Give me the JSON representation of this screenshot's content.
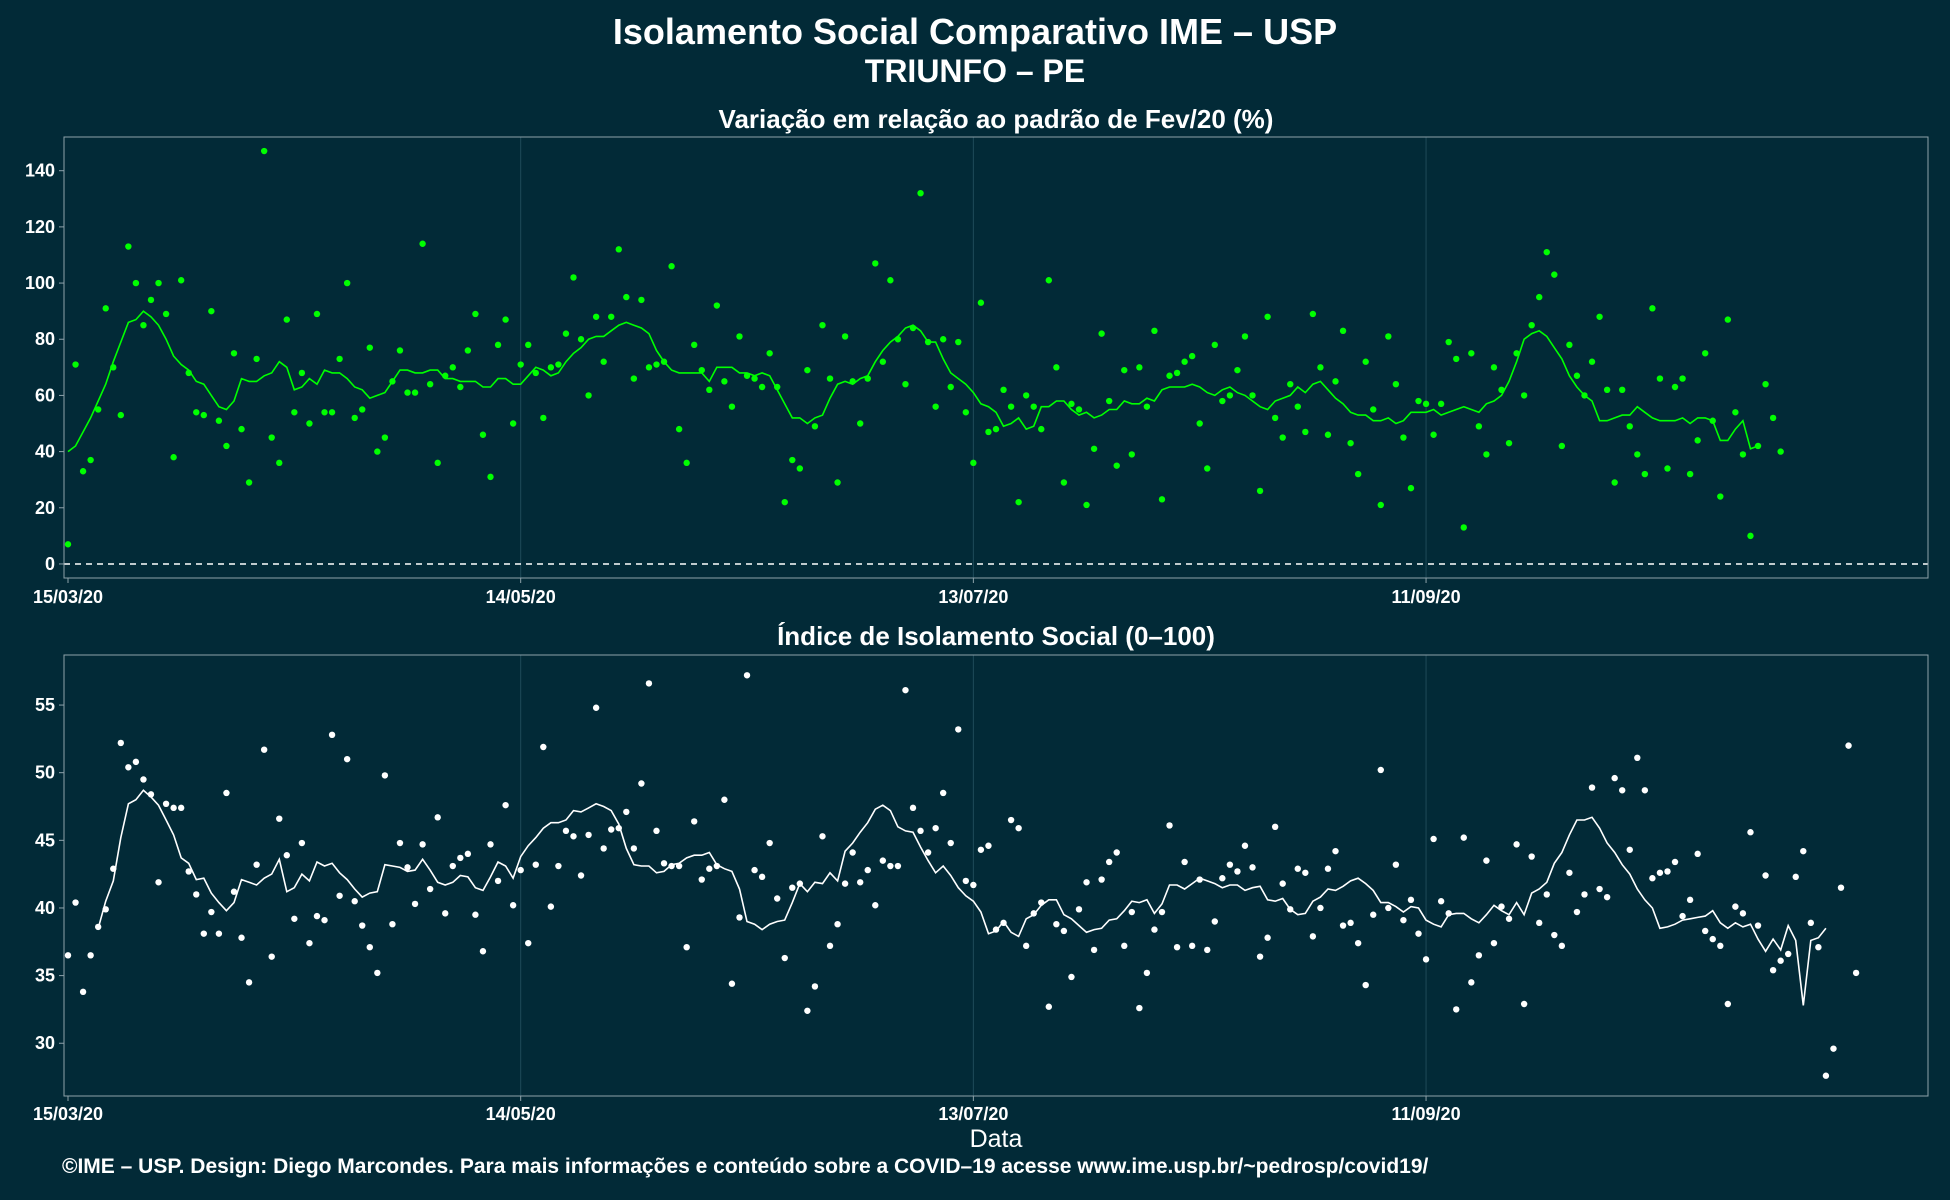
{
  "header": {
    "title": "Isolamento Social Comparativo IME – USP",
    "subtitle": "TRIUNFO – PE"
  },
  "footer": "©IME – USP. Design: Diego Marcondes. Para mais informações e conteúdo sobre a COVID–19 acesse www.ime.usp.br/~pedrosp/covid19/",
  "colors": {
    "background": "#022a37",
    "panel_border": "#8ea2aa",
    "grid": "#1f4a58",
    "green": "#00ff00",
    "white": "#ffffff"
  },
  "chart_data": [
    {
      "type": "scatter",
      "title": "Variação em relação ao padrão de Fev/20 (%)",
      "xlabel": "",
      "ylabel": "",
      "x_ticks": [
        "15/03/20",
        "14/05/20",
        "13/07/20",
        "11/09/20"
      ],
      "y_ticks": [
        0,
        20,
        40,
        60,
        80,
        100,
        120,
        140
      ],
      "ylim": [
        -5,
        152
      ],
      "x_range": [
        "15/03/20",
        "16/11/20"
      ],
      "reference_line": 0,
      "grid": true,
      "series": [
        {
          "kind": "points",
          "color": "#00ff00",
          "values": [
            7,
            71,
            33,
            37,
            55,
            91,
            70,
            53,
            113,
            100,
            85,
            94,
            100,
            89,
            38,
            101,
            68,
            54,
            53,
            90,
            51,
            42,
            75,
            48,
            29,
            73,
            147,
            45,
            36,
            87,
            54,
            68,
            50,
            89,
            54,
            54,
            73,
            100,
            52,
            55,
            77,
            40,
            45,
            65,
            76,
            61,
            61,
            114,
            64,
            36,
            67,
            70,
            63,
            76,
            89,
            46,
            31,
            78,
            87,
            50,
            71,
            78,
            68,
            52,
            70,
            71,
            82,
            102,
            80,
            60,
            88,
            72,
            88,
            112,
            95,
            66,
            94,
            70,
            71,
            72,
            106,
            48,
            36,
            78,
            69,
            62,
            92,
            65,
            56,
            81,
            67,
            66,
            63,
            75,
            63,
            22,
            37,
            34,
            69,
            49,
            85,
            66,
            29,
            81,
            65,
            50,
            66,
            107,
            72,
            101,
            80,
            64,
            84,
            132,
            79,
            56,
            80,
            63,
            79,
            54,
            36,
            93,
            47,
            48,
            62,
            56,
            22,
            60,
            56,
            48,
            101,
            70,
            29,
            57,
            55,
            21,
            41,
            82,
            58,
            35,
            69,
            39,
            70,
            56,
            83,
            23,
            67,
            68,
            72,
            74,
            50,
            34,
            78,
            58,
            60,
            69,
            81,
            60,
            26,
            88,
            52,
            45,
            64,
            56,
            47,
            89,
            70,
            46,
            65,
            83,
            43,
            32,
            72,
            55,
            21,
            81,
            64,
            45,
            27,
            58,
            57,
            46,
            57,
            79,
            73,
            13,
            75,
            49,
            39,
            70,
            62,
            43,
            75,
            60,
            85,
            95,
            111,
            103,
            42,
            78,
            67,
            60,
            72,
            88,
            62,
            29,
            62,
            49,
            39,
            32,
            91,
            66,
            34,
            63,
            66,
            32,
            44,
            75,
            51,
            24,
            87,
            54,
            39,
            10,
            42,
            64,
            52,
            40
          ]
        },
        {
          "kind": "line",
          "color": "#00ff00",
          "name": "",
          "values": [
            40,
            42,
            47,
            52,
            58,
            64,
            72,
            79,
            86,
            87,
            90,
            88,
            85,
            80,
            74,
            71,
            69,
            65,
            64,
            60,
            56,
            55,
            58,
            66,
            65,
            65,
            67,
            68,
            72,
            70,
            62,
            63,
            66,
            64,
            69,
            68,
            68,
            66,
            63,
            62,
            59,
            60,
            61,
            65,
            69,
            69,
            68,
            68,
            69,
            69,
            66,
            66,
            65,
            65,
            65,
            63,
            63,
            66,
            66,
            64,
            64,
            67,
            70,
            69,
            67,
            68,
            72,
            75,
            77,
            80,
            81,
            81,
            83,
            85,
            86,
            85,
            84,
            82,
            76,
            72,
            69,
            68,
            68,
            68,
            68,
            65,
            70,
            70,
            70,
            68,
            68,
            67,
            68,
            67,
            62,
            57,
            52,
            52,
            50,
            52,
            53,
            59,
            64,
            65,
            64,
            66,
            67,
            72,
            76,
            79,
            81,
            84,
            85,
            83,
            79,
            79,
            73,
            68,
            66,
            64,
            61,
            57,
            56,
            54,
            49,
            50,
            52,
            48,
            49,
            56,
            56,
            58,
            58,
            55,
            53,
            54,
            52,
            53,
            55,
            55,
            58,
            57,
            57,
            59,
            58,
            62,
            63,
            63,
            63,
            64,
            63,
            61,
            60,
            62,
            63,
            61,
            60,
            58,
            56,
            55,
            58,
            59,
            60,
            63,
            61,
            64,
            65,
            62,
            59,
            57,
            54,
            53,
            53,
            51,
            51,
            52,
            50,
            51,
            54,
            54,
            54,
            55,
            53,
            54,
            55,
            56,
            55,
            54,
            57,
            58,
            60,
            65,
            72,
            80,
            82,
            83,
            81,
            77,
            73,
            67,
            63,
            60,
            58,
            51,
            51,
            52,
            53,
            53,
            56,
            54,
            52,
            51,
            51,
            51,
            52,
            50,
            52,
            52,
            51,
            44,
            44,
            48,
            51,
            41,
            42
          ]
        }
      ]
    },
    {
      "type": "scatter",
      "title": "Índice de Isolamento Social (0–100)",
      "xlabel": "Data",
      "ylabel": "",
      "x_ticks": [
        "15/03/20",
        "14/05/20",
        "13/07/20",
        "11/09/20"
      ],
      "y_ticks": [
        30,
        35,
        40,
        45,
        50,
        55
      ],
      "ylim": [
        26.1,
        58.7
      ],
      "x_range": [
        "15/03/20",
        "16/11/20"
      ],
      "grid": true,
      "series": [
        {
          "kind": "points",
          "color": "#ffffff",
          "values": [
            36.5,
            40.4,
            33.8,
            36.5,
            38.6,
            39.9,
            42.9,
            52.2,
            50.4,
            50.8,
            49.5,
            48.4,
            41.9,
            47.7,
            47.4,
            47.4,
            42.7,
            41.0,
            38.1,
            39.7,
            38.1,
            48.5,
            41.2,
            37.8,
            34.5,
            43.2,
            51.7,
            36.4,
            46.6,
            43.9,
            39.2,
            44.8,
            37.4,
            39.4,
            39.1,
            52.8,
            40.9,
            51.0,
            40.5,
            38.7,
            37.1,
            35.2,
            49.8,
            38.8,
            44.8,
            43.0,
            40.3,
            44.7,
            41.4,
            46.7,
            39.6,
            43.1,
            43.7,
            44.0,
            39.5,
            36.8,
            44.7,
            42.0,
            47.6,
            40.2,
            42.8,
            37.4,
            43.2,
            51.9,
            40.1,
            43.1,
            45.7,
            45.3,
            42.4,
            45.4,
            54.8,
            44.4,
            45.8,
            45.9,
            47.1,
            44.4,
            49.2,
            56.6,
            45.7,
            43.3,
            43.1,
            43.1,
            37.1,
            46.4,
            42.1,
            42.9,
            43.1,
            48.0,
            34.4,
            39.3,
            57.2,
            42.8,
            42.3,
            44.8,
            40.7,
            36.3,
            41.5,
            41.8,
            32.4,
            34.2,
            45.3,
            37.2,
            38.8,
            41.8,
            44.1,
            41.9,
            42.8,
            40.2,
            43.5,
            43.1,
            43.1,
            56.1,
            47.4,
            45.7,
            44.1,
            45.9,
            48.5,
            44.8,
            53.2,
            42.0,
            41.7,
            44.3,
            44.6,
            38.4,
            38.9,
            46.5,
            45.9,
            37.2,
            39.6,
            40.4,
            32.7,
            38.8,
            38.3,
            34.9,
            39.9,
            41.9,
            36.9,
            42.1,
            43.4,
            44.1,
            37.2,
            39.7,
            32.6,
            35.2,
            38.4,
            39.7,
            46.1,
            37.1,
            43.4,
            37.2,
            42.1,
            36.9,
            39.0,
            42.2,
            43.2,
            42.7,
            44.6,
            43.0,
            36.4,
            37.8,
            46.0,
            41.8,
            39.9,
            42.9,
            42.6,
            37.9,
            40.0,
            42.9,
            44.2,
            38.7,
            38.9,
            37.4,
            34.3,
            39.5,
            50.2,
            40.0,
            43.2,
            39.1,
            40.6,
            38.1,
            36.2,
            45.1,
            40.5,
            39.6,
            32.5,
            45.2,
            34.5,
            36.5,
            43.5,
            37.4,
            40.1,
            39.2,
            44.7,
            32.9,
            43.8,
            38.9,
            41.0,
            38.0,
            37.2,
            42.6,
            39.7,
            41.0,
            48.9,
            41.4,
            40.8,
            49.6,
            48.7,
            44.3,
            51.1,
            48.7,
            42.2,
            42.6,
            42.7,
            43.4,
            39.4,
            40.6,
            44.0,
            38.3,
            37.7,
            37.2,
            32.9,
            40.1,
            39.6,
            45.6,
            38.7,
            42.4,
            35.4,
            36.1,
            36.6,
            42.3,
            44.2,
            38.9,
            37.1,
            27.6,
            29.6,
            41.5,
            52.0,
            35.2
          ]
        },
        {
          "kind": "line",
          "color": "#ffffff",
          "name": "",
          "values": [
            38.5,
            40.5,
            42.0,
            45.2,
            47.7,
            48.0,
            48.7,
            48.2,
            47.6,
            46.5,
            45.4,
            43.7,
            43.3,
            42.1,
            42.2,
            41.1,
            40.4,
            39.8,
            40.4,
            42.1,
            41.9,
            41.7,
            42.2,
            42.5,
            43.6,
            41.2,
            41.5,
            42.5,
            42.0,
            43.4,
            43.1,
            43.3,
            42.6,
            42.1,
            41.4,
            40.8,
            41.1,
            41.2,
            43.2,
            43.1,
            43.0,
            42.7,
            42.8,
            43.6,
            42.8,
            41.9,
            41.7,
            41.9,
            42.4,
            42.3,
            41.5,
            41.3,
            42.3,
            43.4,
            43.1,
            42.2,
            43.8,
            44.6,
            45.2,
            45.9,
            46.3,
            46.3,
            46.5,
            47.2,
            47.1,
            47.4,
            47.7,
            47.5,
            47.2,
            46.2,
            44.4,
            43.2,
            43.1,
            43.1,
            42.6,
            42.7,
            43.2,
            43.3,
            43.7,
            43.9,
            43.9,
            44.1,
            43.2,
            42.9,
            42.7,
            41.4,
            39.0,
            38.8,
            38.4,
            38.8,
            39.0,
            39.1,
            40.4,
            41.8,
            41.2,
            41.9,
            41.8,
            42.6,
            42.0,
            44.2,
            44.8,
            45.6,
            46.3,
            47.3,
            47.6,
            47.2,
            46.0,
            45.7,
            45.6,
            44.5,
            43.5,
            42.6,
            43.1,
            42.4,
            41.5,
            40.9,
            40.5,
            39.7,
            38.1,
            38.3,
            39.0,
            38.2,
            37.9,
            39.2,
            39.5,
            40.2,
            40.6,
            40.6,
            39.5,
            39.2,
            38.7,
            38.2,
            38.4,
            38.5,
            39.1,
            39.2,
            39.8,
            40.5,
            40.4,
            40.6,
            39.6,
            40.3,
            41.7,
            41.7,
            41.4,
            41.8,
            42.2,
            42.0,
            41.8,
            41.5,
            41.7,
            41.7,
            41.3,
            41.5,
            41.6,
            40.6,
            40.5,
            40.7,
            39.9,
            39.5,
            39.6,
            40.5,
            40.8,
            41.4,
            41.3,
            41.6,
            42.0,
            42.2,
            41.8,
            41.3,
            40.4,
            40.4,
            40.1,
            39.7,
            40.1,
            40.0,
            39.1,
            38.8,
            38.6,
            39.5,
            39.6,
            39.6,
            39.2,
            38.9,
            39.5,
            40.2,
            39.8,
            39.5,
            40.4,
            39.5,
            41.1,
            41.4,
            41.9,
            43.3,
            44.1,
            45.4,
            46.5,
            46.5,
            46.7,
            45.9,
            44.8,
            44.1,
            43.2,
            42.5,
            41.4,
            40.6,
            40.0,
            38.5,
            38.6,
            38.8,
            39.1,
            39.2,
            39.3,
            39.4,
            39.8,
            38.9,
            38.5,
            38.9,
            38.6,
            38.8,
            37.7,
            36.8,
            37.7,
            36.9,
            38.7,
            37.6,
            32.8,
            37.6,
            37.8,
            38.5
          ]
        }
      ]
    }
  ]
}
